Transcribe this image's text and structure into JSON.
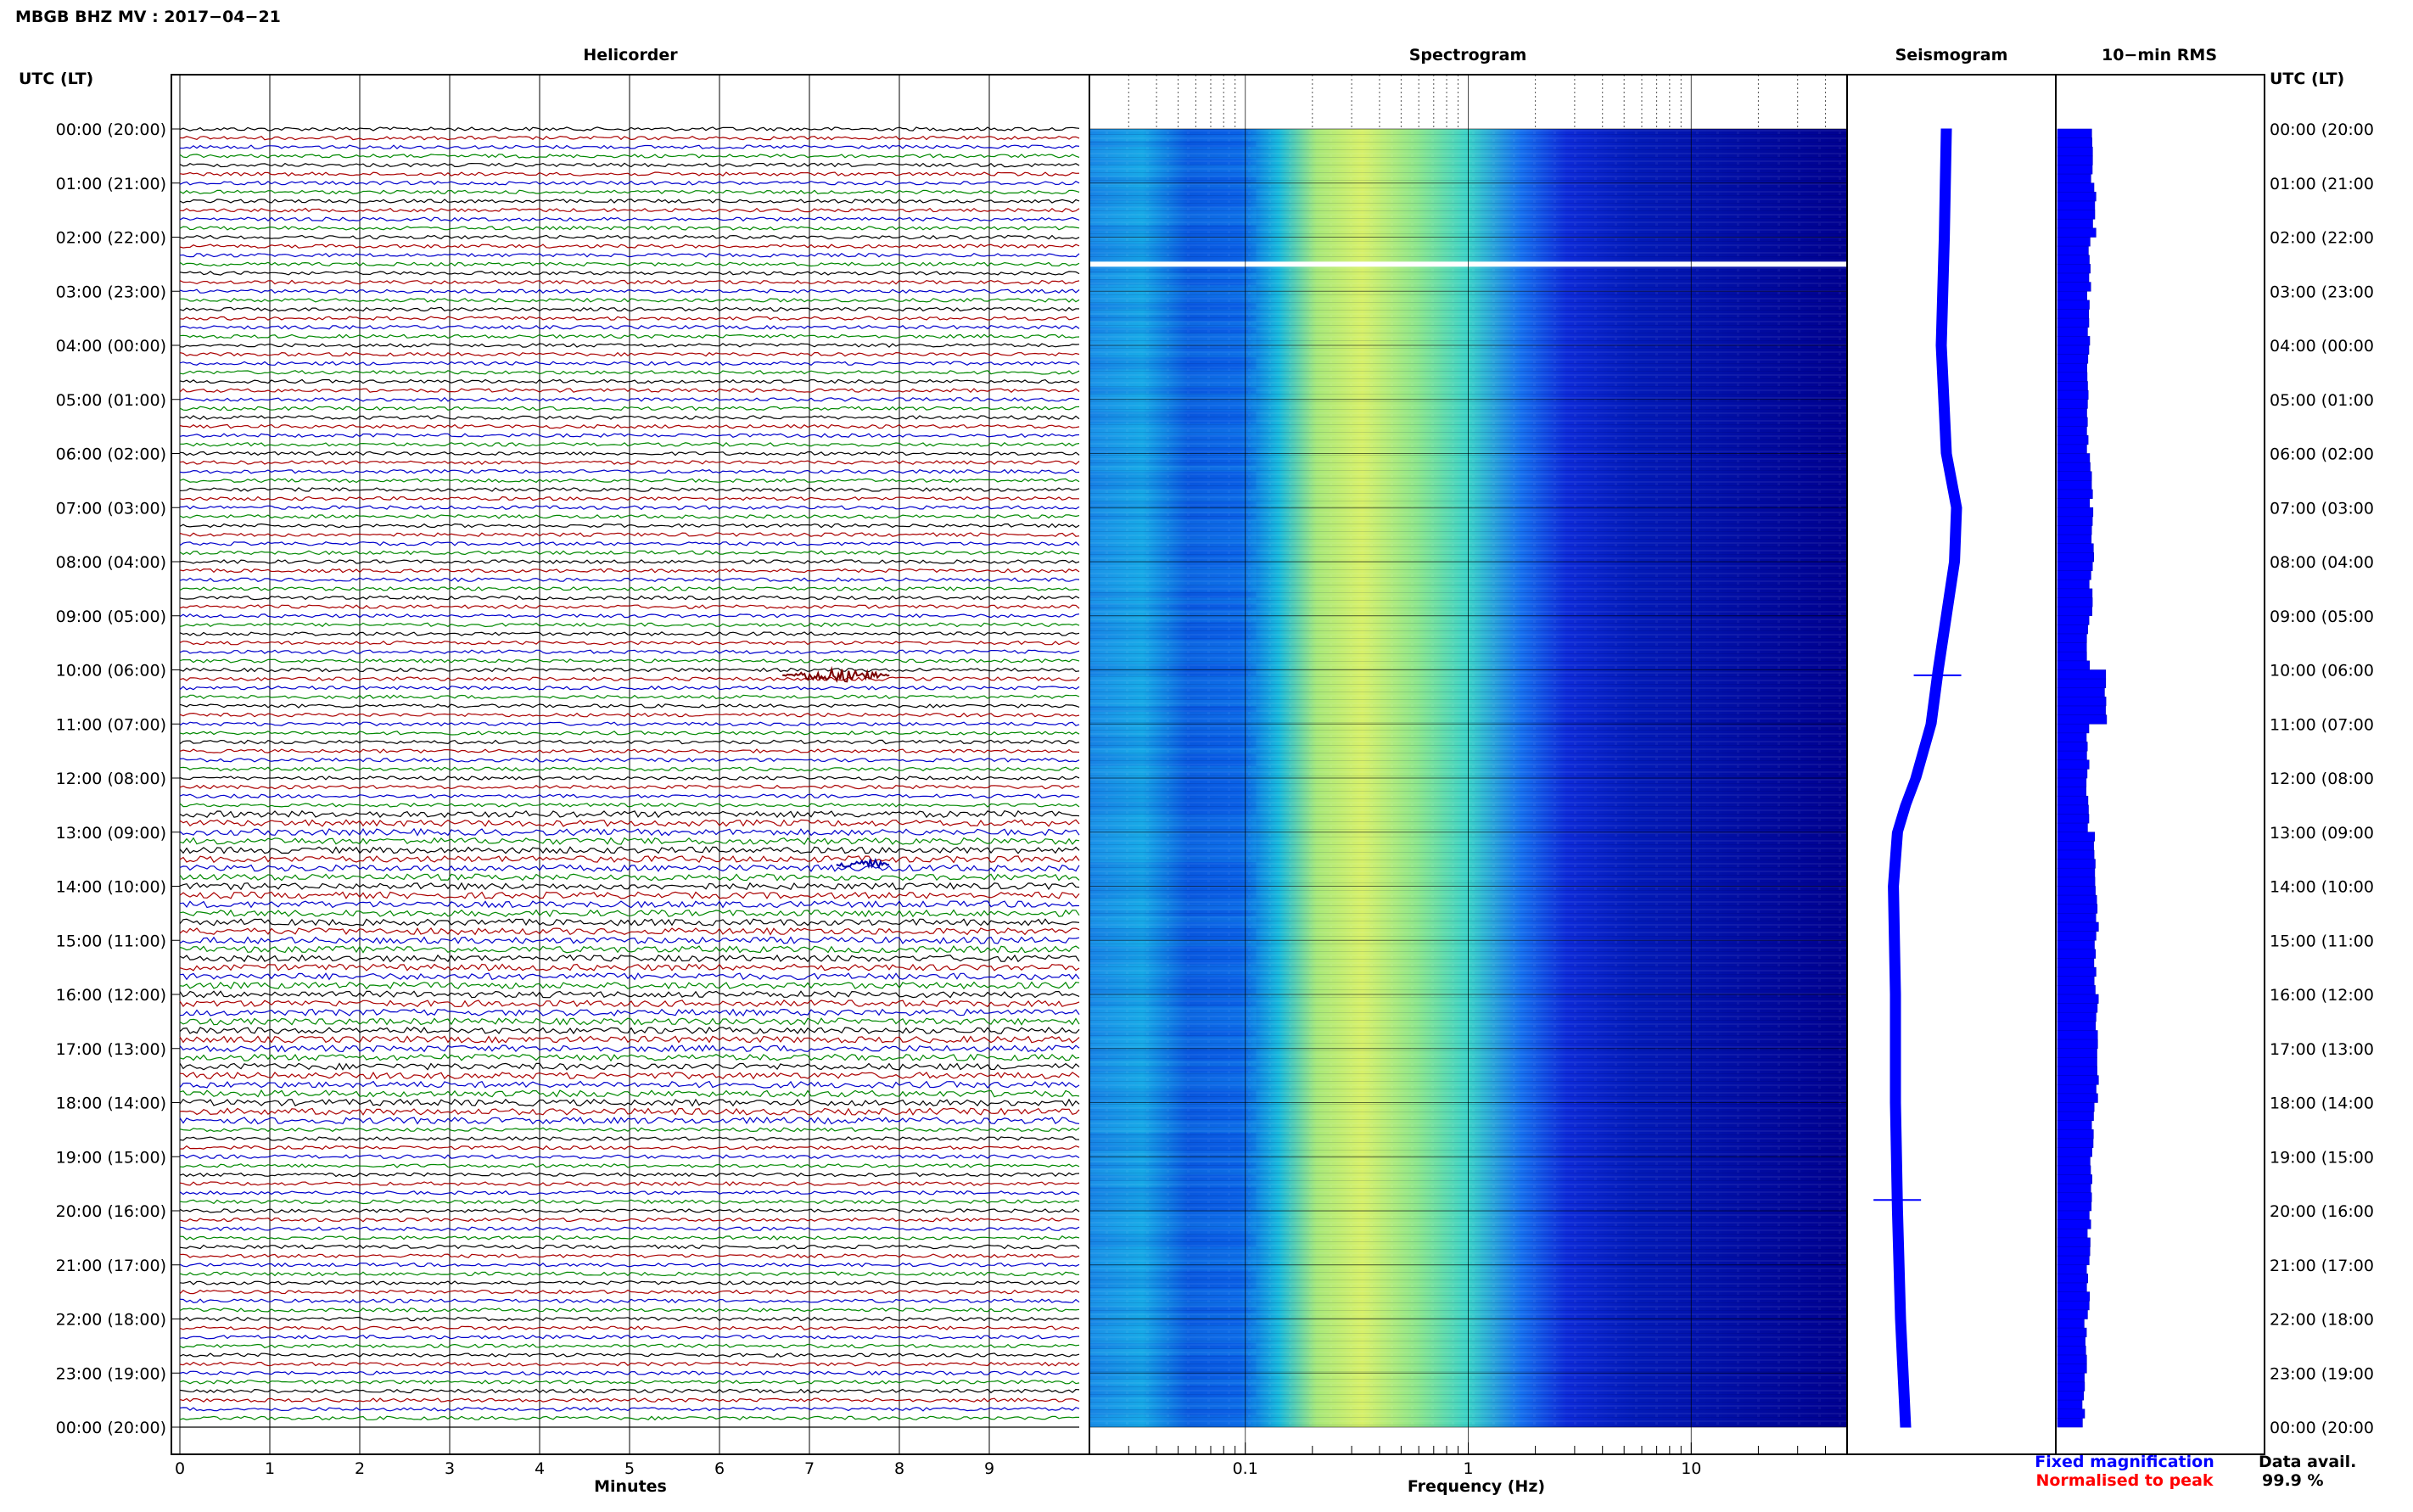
{
  "header": {
    "station_title": "MBGB BHZ MV : 2017−04−21"
  },
  "panels": {
    "helicorder": "Helicorder",
    "spectrogram": "Spectrogram",
    "seismogram": "Seismogram",
    "rms": "10−min RMS"
  },
  "axes": {
    "left_header": "UTC (LT)",
    "right_header": "UTC (LT)",
    "helicorder_xlabel": "Minutes",
    "spectrogram_xlabel": "Frequency (Hz)"
  },
  "legend": {
    "fixed": "Fixed magnification",
    "normalised": "Normalised to peak",
    "fixed_color": "#0000ff",
    "normalised_color": "#ff0000"
  },
  "data_avail": {
    "label": "Data avail.",
    "value": "99.9 %"
  },
  "colors": {
    "trace_cycle": [
      "#000000",
      "#aa0000",
      "#0000cc",
      "#008800"
    ],
    "spectrogram_base": "#00008f",
    "rms_bar": "#0000ff"
  },
  "chart_data": [
    {
      "type": "line",
      "title": "Helicorder",
      "xlabel": "Minutes",
      "ylabel": "UTC (LT)",
      "xlim": [
        0,
        10
      ],
      "x_ticks": [
        0,
        1,
        2,
        3,
        4,
        5,
        6,
        7,
        8,
        9
      ],
      "y_tick_labels": [
        "00:00 (20:00)",
        "01:00 (21:00)",
        "02:00 (22:00)",
        "03:00 (23:00)",
        "04:00 (00:00)",
        "05:00 (01:00)",
        "06:00 (02:00)",
        "07:00 (03:00)",
        "08:00 (04:00)",
        "09:00 (05:00)",
        "10:00 (06:00)",
        "11:00 (07:00)",
        "12:00 (08:00)",
        "13:00 (09:00)",
        "14:00 (10:00)",
        "15:00 (11:00)",
        "16:00 (12:00)",
        "17:00 (13:00)",
        "18:00 (14:00)",
        "19:00 (15:00)",
        "20:00 (16:00)",
        "21:00 (17:00)",
        "22:00 (18:00)",
        "23:00 (19:00)",
        "00:00 (20:00)"
      ],
      "traces_per_hour": 6,
      "grid": true,
      "events": [
        {
          "hour": 10.1,
          "minute_start": 6.7,
          "minute_end": 7.9
        },
        {
          "hour": 13.6,
          "minute_start": 7.3,
          "minute_end": 7.9
        }
      ]
    },
    {
      "type": "heatmap",
      "title": "Spectrogram",
      "xlabel": "Frequency (Hz)",
      "x_scale": "log",
      "xlim": [
        0.02,
        50
      ],
      "x_tick_labels": [
        "0.1",
        "1",
        "10"
      ],
      "x_tick_values": [
        0.1,
        1,
        10
      ],
      "ylim_hours": [
        0,
        24
      ],
      "grid": true,
      "gap_hour": 2.5
    },
    {
      "type": "line",
      "title": "Seismogram",
      "series": [
        {
          "name": "Fixed magnification",
          "x_hours": [
            0,
            2,
            4,
            6,
            7,
            8,
            9,
            10,
            11,
            12,
            12.5,
            13,
            14,
            16,
            18,
            20,
            22,
            24
          ],
          "offset": [
            0.2,
            0.18,
            0.15,
            0.2,
            0.3,
            0.28,
            0.2,
            0.12,
            0.05,
            -0.1,
            -0.2,
            -0.28,
            -0.32,
            -0.3,
            -0.3,
            -0.28,
            -0.25,
            -0.2
          ]
        }
      ],
      "spikes": [
        {
          "hour": 10.1
        },
        {
          "hour": 19.8
        }
      ]
    },
    {
      "type": "bar",
      "title": "10−min RMS",
      "orientation": "horizontal",
      "hourly_rms_relative": [
        0.38,
        0.42,
        0.37,
        0.35,
        0.34,
        0.33,
        0.38,
        0.4,
        0.38,
        0.35,
        0.55,
        0.34,
        0.34,
        0.42,
        0.45,
        0.43,
        0.45,
        0.46,
        0.4,
        0.38,
        0.36,
        0.35,
        0.32,
        0.3
      ],
      "peak": {
        "hour": 10.1,
        "value": 0.55
      }
    }
  ]
}
